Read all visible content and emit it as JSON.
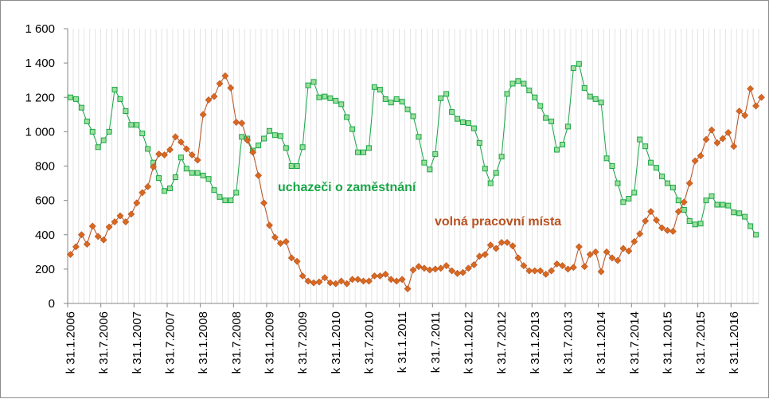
{
  "chart_data": {
    "type": "line",
    "ylim": [
      0,
      1600
    ],
    "y_ticks": [
      "0",
      "200",
      "400",
      "600",
      "800",
      "1 000",
      "1 200",
      "1 400",
      "1 600"
    ],
    "y_tick_values": [
      0,
      200,
      400,
      600,
      800,
      1000,
      1200,
      1400,
      1600
    ],
    "x_labels": [
      "k 31.1.2006",
      "k 31.7.2006",
      "k 31.1.2007",
      "k 31.7.2007",
      "k 31.1.2008",
      "k 31.7.2008",
      "k 31.1.2009",
      "k 31.7.2009",
      "k 31.1.2010",
      "k 31.7.2010",
      "k 31.1.2011",
      "k 31.7.2011",
      "k 31.1.2012",
      "k 31.7.2012",
      "k 31.1.2013",
      "k 31.7.2013",
      "k 31.1.2014",
      "k 31.7.2014",
      "k 31.1.2015",
      "k 31.7.2015",
      "k 31.1.2016"
    ],
    "grid": "vertical, monthly",
    "series": [
      {
        "name": "uchazeči o zaměstnání",
        "color": "#1aa548",
        "fill": "#9be19b",
        "marker": "square",
        "values": [
          1200,
          1190,
          1140,
          1060,
          1000,
          910,
          950,
          1000,
          1245,
          1190,
          1120,
          1040,
          1040,
          990,
          900,
          820,
          730,
          655,
          670,
          735,
          850,
          785,
          760,
          760,
          745,
          725,
          660,
          620,
          600,
          600,
          645,
          970,
          960,
          890,
          920,
          960,
          1005,
          980,
          975,
          905,
          800,
          800,
          910,
          1270,
          1290,
          1200,
          1205,
          1195,
          1180,
          1160,
          1085,
          1015,
          880,
          880,
          905,
          1260,
          1245,
          1190,
          1170,
          1190,
          1175,
          1130,
          1090,
          970,
          820,
          780,
          870,
          1195,
          1220,
          1115,
          1075,
          1055,
          1050,
          1020,
          935,
          785,
          700,
          760,
          855,
          1220,
          1280,
          1295,
          1280,
          1240,
          1200,
          1150,
          1080,
          1060,
          895,
          925,
          1030,
          1370,
          1395,
          1255,
          1205,
          1190,
          1170,
          845,
          800,
          700,
          590,
          610,
          645,
          955,
          915,
          820,
          790,
          740,
          700,
          675,
          600,
          545,
          480,
          460,
          465,
          600,
          625,
          575,
          575,
          570,
          530,
          525,
          505,
          450,
          400
        ]
      },
      {
        "name": "volná pracovní místa",
        "color": "#b8501e",
        "fill": "#d9691f",
        "marker": "diamond",
        "values": [
          285,
          330,
          400,
          345,
          450,
          390,
          370,
          445,
          475,
          510,
          475,
          520,
          585,
          645,
          680,
          795,
          870,
          865,
          895,
          970,
          940,
          900,
          865,
          835,
          1100,
          1185,
          1205,
          1280,
          1325,
          1255,
          1055,
          1050,
          950,
          880,
          745,
          585,
          455,
          385,
          350,
          360,
          265,
          245,
          160,
          130,
          120,
          125,
          150,
          120,
          115,
          130,
          115,
          140,
          140,
          130,
          130,
          160,
          160,
          170,
          140,
          130,
          140,
          85,
          195,
          215,
          205,
          195,
          200,
          205,
          220,
          190,
          175,
          180,
          205,
          225,
          275,
          285,
          340,
          320,
          355,
          355,
          335,
          265,
          220,
          190,
          190,
          190,
          170,
          190,
          230,
          220,
          200,
          210,
          330,
          215,
          285,
          300,
          185,
          300,
          265,
          250,
          320,
          305,
          360,
          405,
          480,
          535,
          485,
          440,
          425,
          420,
          535,
          590,
          700,
          830,
          860,
          955,
          1010,
          935,
          960,
          995,
          915,
          1120,
          1095,
          1250,
          1150,
          1200
        ]
      }
    ]
  },
  "series_labels": {
    "applicants": "uchazeči o zaměstnání",
    "vacancies": "volná pracovní místa"
  }
}
